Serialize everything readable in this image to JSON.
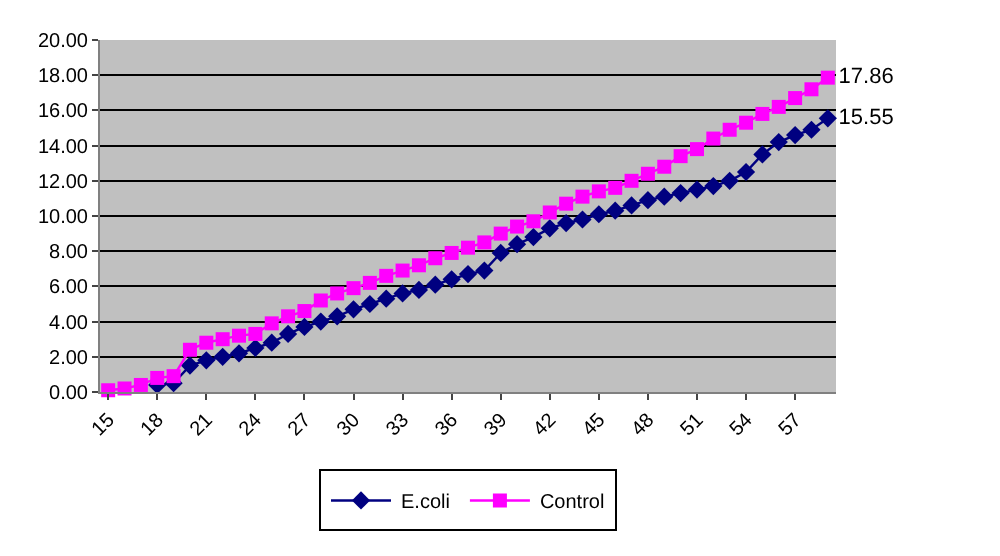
{
  "chart_data": {
    "type": "line",
    "categories": [
      "15",
      null,
      null,
      "18",
      null,
      null,
      "21",
      null,
      null,
      "24",
      null,
      null,
      "27",
      null,
      null,
      "30",
      null,
      null,
      "33",
      null,
      null,
      "36",
      null,
      null,
      "39",
      null,
      null,
      "42",
      null,
      null,
      "45",
      null,
      null,
      "48",
      null,
      null,
      "51",
      null,
      null,
      "54",
      null,
      null,
      "57",
      null,
      null
    ],
    "series": [
      {
        "name": "E.coli",
        "color": "#000080",
        "marker": "diamond",
        "values": [
          null,
          null,
          null,
          0.4,
          0.5,
          1.5,
          1.8,
          2.0,
          2.2,
          2.5,
          2.8,
          3.3,
          3.7,
          4.0,
          4.3,
          4.7,
          5.0,
          5.3,
          5.6,
          5.8,
          6.1,
          6.4,
          6.7,
          6.9,
          7.9,
          8.4,
          8.8,
          9.3,
          9.6,
          9.8,
          10.1,
          10.3,
          10.6,
          10.9,
          11.1,
          11.3,
          11.5,
          11.7,
          12.0,
          12.5,
          13.5,
          14.2,
          14.6,
          14.9,
          15.55
        ],
        "value_labels": [
          null,
          null,
          null,
          null,
          null,
          null,
          null,
          null,
          null,
          null,
          null,
          null,
          null,
          null,
          null,
          null,
          null,
          null,
          null,
          null,
          null,
          null,
          null,
          null,
          null,
          null,
          null,
          null,
          null,
          null,
          null,
          null,
          null,
          null,
          null,
          null,
          null,
          null,
          null,
          null,
          null,
          null,
          null,
          null,
          "15.55"
        ]
      },
      {
        "name": "Control",
        "color": "#ff00ff",
        "marker": "square",
        "values": [
          0.1,
          0.2,
          0.4,
          0.8,
          0.9,
          2.4,
          2.8,
          3.0,
          3.2,
          3.3,
          3.9,
          4.3,
          4.6,
          5.2,
          5.6,
          5.9,
          6.2,
          6.6,
          6.9,
          7.2,
          7.6,
          7.9,
          8.2,
          8.5,
          9.0,
          9.4,
          9.7,
          10.2,
          10.7,
          11.1,
          11.4,
          11.6,
          12.0,
          12.4,
          12.8,
          13.4,
          13.8,
          14.4,
          14.9,
          15.3,
          15.8,
          16.2,
          16.7,
          17.2,
          17.86
        ],
        "value_labels": [
          null,
          null,
          null,
          null,
          null,
          null,
          null,
          null,
          null,
          null,
          null,
          null,
          null,
          null,
          null,
          null,
          null,
          null,
          null,
          null,
          null,
          null,
          null,
          null,
          null,
          null,
          null,
          null,
          null,
          null,
          null,
          null,
          null,
          null,
          null,
          null,
          null,
          null,
          null,
          null,
          null,
          null,
          null,
          null,
          "17.86"
        ]
      }
    ],
    "ylim": [
      0,
      20
    ],
    "yticks": [
      {
        "value": 0,
        "label": "0.00"
      },
      {
        "value": 2,
        "label": "2.00"
      },
      {
        "value": 4,
        "label": "4.00"
      },
      {
        "value": 6,
        "label": "6.00"
      },
      {
        "value": 8,
        "label": "8.00"
      },
      {
        "value": 10,
        "label": "10.00"
      },
      {
        "value": 12,
        "label": "12.00"
      },
      {
        "value": 14,
        "label": "14.00"
      },
      {
        "value": 16,
        "label": "16.00"
      },
      {
        "value": 18,
        "label": "18.00"
      },
      {
        "value": 20,
        "label": "20.00"
      }
    ],
    "grid": "y",
    "legend": "bottom"
  }
}
